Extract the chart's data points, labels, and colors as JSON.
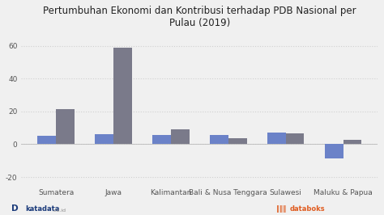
{
  "title": "Pertumbuhan Ekonomi dan Kontribusi terhadap PDB Nasional per\nPulau (2019)",
  "categories": [
    "Sumatera",
    "Jawa",
    "Kalimantan",
    "Bali & Nusa Tenggara",
    "Sulawesi",
    "Maluku & Papua"
  ],
  "series1_values": [
    5.3,
    5.9,
    5.7,
    5.4,
    6.9,
    -8.5
  ],
  "series2_values": [
    21.3,
    59.0,
    8.9,
    3.5,
    6.7,
    2.5
  ],
  "series1_color": "#6b82c8",
  "series2_color": "#7a7a8a",
  "ylim": [
    -25,
    68
  ],
  "yticks": [
    -20,
    0,
    20,
    40,
    60
  ],
  "background_color": "#f0f0f0",
  "plot_bg_color": "#f0f0f0",
  "grid_color": "#d0d0d0",
  "title_fontsize": 8.5,
  "tick_fontsize": 6.5,
  "xlabel_fontsize": 6.5,
  "bar_width": 0.32,
  "katadata_color": "#1a3a7a",
  "databoks_color": "#e05c20"
}
